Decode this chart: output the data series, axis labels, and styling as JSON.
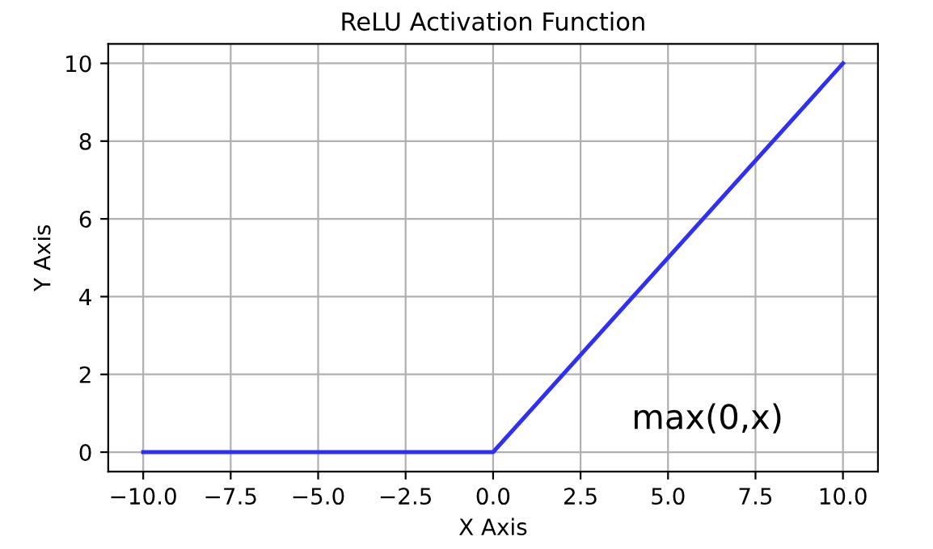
{
  "chart_data": {
    "type": "line",
    "title": "ReLU Activation Function",
    "xlabel": "X Axis",
    "ylabel": "Y Axis",
    "x": [
      -10,
      0,
      10
    ],
    "series": [
      {
        "color": "#2f2ff5",
        "values": [
          0,
          0,
          10
        ]
      }
    ],
    "xlim": [
      -11,
      11
    ],
    "xticks": [
      {
        "value": -10,
        "label": "−10.0"
      },
      {
        "value": -7.5,
        "label": "−7.5"
      },
      {
        "value": -5,
        "label": "−5.0"
      },
      {
        "value": -2.5,
        "label": "−2.5"
      },
      {
        "value": 0,
        "label": "0.0"
      },
      {
        "value": 2.5,
        "label": "2.5"
      },
      {
        "value": 5,
        "label": "5.0"
      },
      {
        "value": 7.5,
        "label": "7.5"
      },
      {
        "value": 10,
        "label": "10.0"
      }
    ],
    "ylim": [
      -0.5,
      10.5
    ],
    "yticks": [
      0,
      2,
      4,
      6,
      8,
      10
    ],
    "annotations": [
      "max(0,x)"
    ],
    "grid": true,
    "marker": "none",
    "line_style": "solid"
  }
}
